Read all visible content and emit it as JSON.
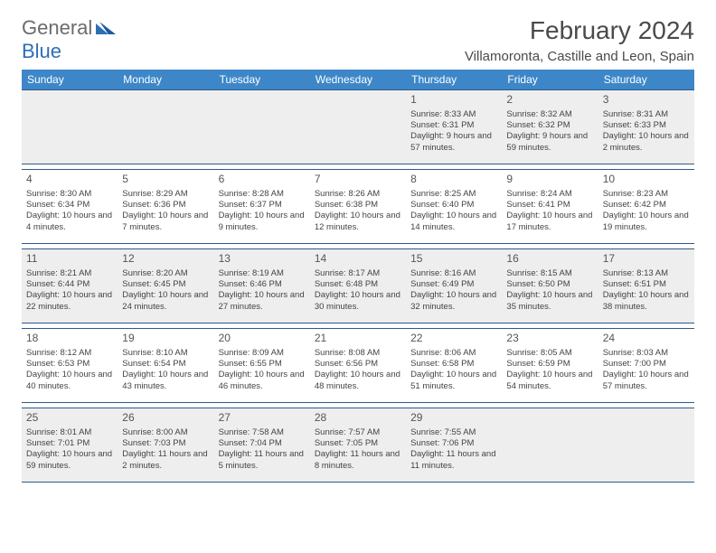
{
  "logo": {
    "general": "General",
    "blue": "Blue"
  },
  "title": "February 2024",
  "location": "Villamoronta, Castille and Leon, Spain",
  "colors": {
    "header_bg": "#3d87c9",
    "header_fg": "#ffffff",
    "rule": "#2d5a8a",
    "shade": "#eeeeee",
    "text": "#444444"
  },
  "day_headers": [
    "Sunday",
    "Monday",
    "Tuesday",
    "Wednesday",
    "Thursday",
    "Friday",
    "Saturday"
  ],
  "weeks": [
    [
      null,
      null,
      null,
      null,
      {
        "n": "1",
        "sr": "Sunrise: 8:33 AM",
        "ss": "Sunset: 6:31 PM",
        "dl": "Daylight: 9 hours and 57 minutes."
      },
      {
        "n": "2",
        "sr": "Sunrise: 8:32 AM",
        "ss": "Sunset: 6:32 PM",
        "dl": "Daylight: 9 hours and 59 minutes."
      },
      {
        "n": "3",
        "sr": "Sunrise: 8:31 AM",
        "ss": "Sunset: 6:33 PM",
        "dl": "Daylight: 10 hours and 2 minutes."
      }
    ],
    [
      {
        "n": "4",
        "sr": "Sunrise: 8:30 AM",
        "ss": "Sunset: 6:34 PM",
        "dl": "Daylight: 10 hours and 4 minutes."
      },
      {
        "n": "5",
        "sr": "Sunrise: 8:29 AM",
        "ss": "Sunset: 6:36 PM",
        "dl": "Daylight: 10 hours and 7 minutes."
      },
      {
        "n": "6",
        "sr": "Sunrise: 8:28 AM",
        "ss": "Sunset: 6:37 PM",
        "dl": "Daylight: 10 hours and 9 minutes."
      },
      {
        "n": "7",
        "sr": "Sunrise: 8:26 AM",
        "ss": "Sunset: 6:38 PM",
        "dl": "Daylight: 10 hours and 12 minutes."
      },
      {
        "n": "8",
        "sr": "Sunrise: 8:25 AM",
        "ss": "Sunset: 6:40 PM",
        "dl": "Daylight: 10 hours and 14 minutes."
      },
      {
        "n": "9",
        "sr": "Sunrise: 8:24 AM",
        "ss": "Sunset: 6:41 PM",
        "dl": "Daylight: 10 hours and 17 minutes."
      },
      {
        "n": "10",
        "sr": "Sunrise: 8:23 AM",
        "ss": "Sunset: 6:42 PM",
        "dl": "Daylight: 10 hours and 19 minutes."
      }
    ],
    [
      {
        "n": "11",
        "sr": "Sunrise: 8:21 AM",
        "ss": "Sunset: 6:44 PM",
        "dl": "Daylight: 10 hours and 22 minutes."
      },
      {
        "n": "12",
        "sr": "Sunrise: 8:20 AM",
        "ss": "Sunset: 6:45 PM",
        "dl": "Daylight: 10 hours and 24 minutes."
      },
      {
        "n": "13",
        "sr": "Sunrise: 8:19 AM",
        "ss": "Sunset: 6:46 PM",
        "dl": "Daylight: 10 hours and 27 minutes."
      },
      {
        "n": "14",
        "sr": "Sunrise: 8:17 AM",
        "ss": "Sunset: 6:48 PM",
        "dl": "Daylight: 10 hours and 30 minutes."
      },
      {
        "n": "15",
        "sr": "Sunrise: 8:16 AM",
        "ss": "Sunset: 6:49 PM",
        "dl": "Daylight: 10 hours and 32 minutes."
      },
      {
        "n": "16",
        "sr": "Sunrise: 8:15 AM",
        "ss": "Sunset: 6:50 PM",
        "dl": "Daylight: 10 hours and 35 minutes."
      },
      {
        "n": "17",
        "sr": "Sunrise: 8:13 AM",
        "ss": "Sunset: 6:51 PM",
        "dl": "Daylight: 10 hours and 38 minutes."
      }
    ],
    [
      {
        "n": "18",
        "sr": "Sunrise: 8:12 AM",
        "ss": "Sunset: 6:53 PM",
        "dl": "Daylight: 10 hours and 40 minutes."
      },
      {
        "n": "19",
        "sr": "Sunrise: 8:10 AM",
        "ss": "Sunset: 6:54 PM",
        "dl": "Daylight: 10 hours and 43 minutes."
      },
      {
        "n": "20",
        "sr": "Sunrise: 8:09 AM",
        "ss": "Sunset: 6:55 PM",
        "dl": "Daylight: 10 hours and 46 minutes."
      },
      {
        "n": "21",
        "sr": "Sunrise: 8:08 AM",
        "ss": "Sunset: 6:56 PM",
        "dl": "Daylight: 10 hours and 48 minutes."
      },
      {
        "n": "22",
        "sr": "Sunrise: 8:06 AM",
        "ss": "Sunset: 6:58 PM",
        "dl": "Daylight: 10 hours and 51 minutes."
      },
      {
        "n": "23",
        "sr": "Sunrise: 8:05 AM",
        "ss": "Sunset: 6:59 PM",
        "dl": "Daylight: 10 hours and 54 minutes."
      },
      {
        "n": "24",
        "sr": "Sunrise: 8:03 AM",
        "ss": "Sunset: 7:00 PM",
        "dl": "Daylight: 10 hours and 57 minutes."
      }
    ],
    [
      {
        "n": "25",
        "sr": "Sunrise: 8:01 AM",
        "ss": "Sunset: 7:01 PM",
        "dl": "Daylight: 10 hours and 59 minutes."
      },
      {
        "n": "26",
        "sr": "Sunrise: 8:00 AM",
        "ss": "Sunset: 7:03 PM",
        "dl": "Daylight: 11 hours and 2 minutes."
      },
      {
        "n": "27",
        "sr": "Sunrise: 7:58 AM",
        "ss": "Sunset: 7:04 PM",
        "dl": "Daylight: 11 hours and 5 minutes."
      },
      {
        "n": "28",
        "sr": "Sunrise: 7:57 AM",
        "ss": "Sunset: 7:05 PM",
        "dl": "Daylight: 11 hours and 8 minutes."
      },
      {
        "n": "29",
        "sr": "Sunrise: 7:55 AM",
        "ss": "Sunset: 7:06 PM",
        "dl": "Daylight: 11 hours and 11 minutes."
      },
      null,
      null
    ]
  ]
}
